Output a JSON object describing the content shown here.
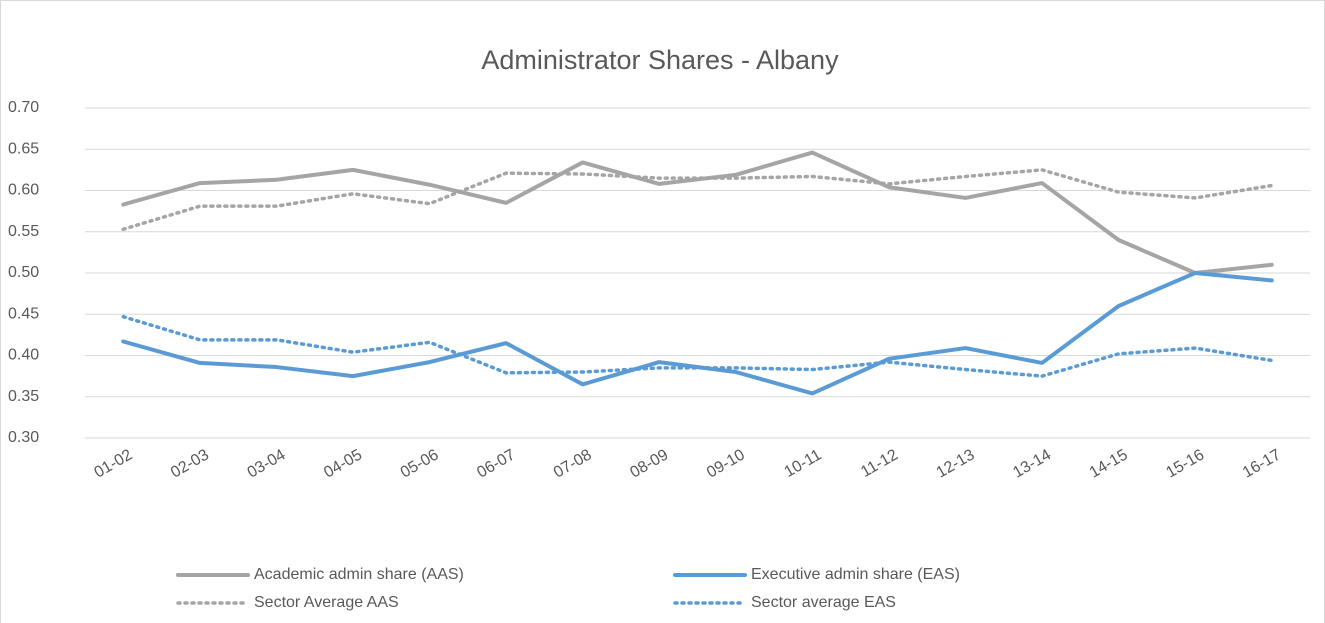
{
  "chart_data": {
    "type": "line",
    "title": "Administrator Shares - Albany",
    "categories": [
      "01-02",
      "02-03",
      "03-04",
      "04-05",
      "05-06",
      "06-07",
      "07-08",
      "08-09",
      "09-10",
      "10-11",
      "11-12",
      "12-13",
      "13-14",
      "14-15",
      "15-16",
      "16-17"
    ],
    "series": [
      {
        "name": "Academic admin share (AAS)",
        "color": "#a5a5a5",
        "style": "solid",
        "values": [
          0.583,
          0.609,
          0.613,
          0.625,
          0.607,
          0.585,
          0.634,
          0.608,
          0.619,
          0.646,
          0.604,
          0.591,
          0.609,
          0.54,
          0.5,
          0.51
        ]
      },
      {
        "name": "Executive admin share (EAS)",
        "color": "#5b9bd5",
        "style": "solid",
        "values": [
          0.417,
          0.391,
          0.386,
          0.375,
          0.392,
          0.415,
          0.365,
          0.392,
          0.38,
          0.354,
          0.396,
          0.409,
          0.391,
          0.46,
          0.5,
          0.491
        ]
      },
      {
        "name": "Sector Average AAS",
        "color": "#a5a5a5",
        "style": "dotted",
        "values": [
          0.553,
          0.581,
          0.581,
          0.596,
          0.584,
          0.621,
          0.62,
          0.615,
          0.615,
          0.617,
          0.608,
          0.617,
          0.625,
          0.598,
          0.591,
          0.606
        ]
      },
      {
        "name": "Sector average EAS",
        "color": "#5b9bd5",
        "style": "dotted",
        "values": [
          0.447,
          0.419,
          0.419,
          0.404,
          0.416,
          0.379,
          0.38,
          0.385,
          0.385,
          0.383,
          0.392,
          0.383,
          0.375,
          0.402,
          0.409,
          0.394
        ]
      }
    ],
    "ylim": [
      0.3,
      0.7
    ],
    "yticks": [
      {
        "value": 0.3,
        "label": "0.30"
      },
      {
        "value": 0.35,
        "label": "0.35"
      },
      {
        "value": 0.4,
        "label": "0.40"
      },
      {
        "value": 0.45,
        "label": "0.45"
      },
      {
        "value": 0.5,
        "label": "0.50"
      },
      {
        "value": 0.55,
        "label": "0.55"
      },
      {
        "value": 0.6,
        "label": "0.60"
      },
      {
        "value": 0.65,
        "label": "0.65"
      },
      {
        "value": 0.7,
        "label": "0.70"
      }
    ],
    "grid": true,
    "legend": "bottom"
  }
}
